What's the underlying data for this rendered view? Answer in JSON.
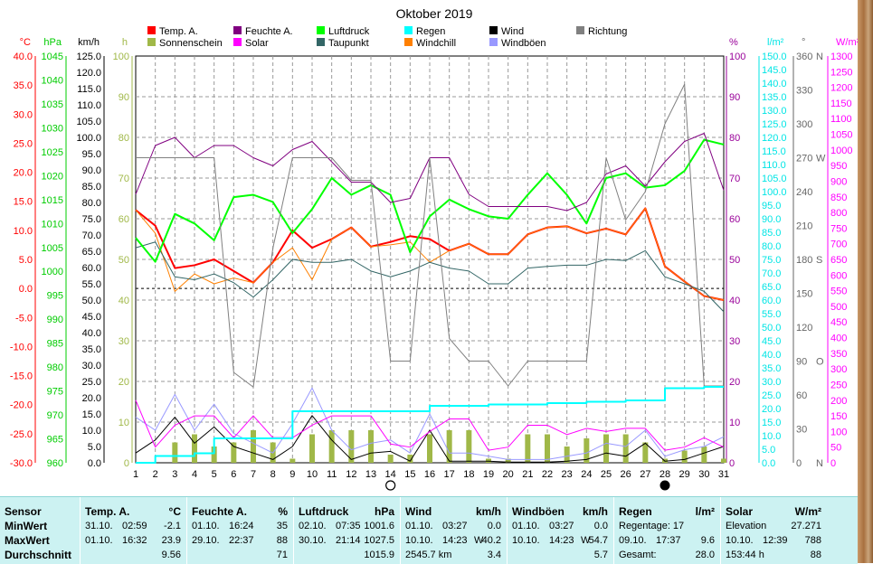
{
  "chart_data": {
    "type": "line",
    "title": "Oktober 2019",
    "days": [
      1,
      2,
      3,
      4,
      5,
      6,
      7,
      8,
      9,
      10,
      11,
      12,
      13,
      14,
      15,
      16,
      17,
      18,
      19,
      20,
      21,
      22,
      23,
      24,
      25,
      26,
      27,
      28,
      29,
      30,
      31
    ],
    "x_ticks": [
      "1",
      "2",
      "3",
      "4",
      "5",
      "6",
      "7",
      "8",
      "9",
      "10",
      "11",
      "12",
      "13",
      "14",
      "15",
      "16",
      "17",
      "18",
      "19",
      "20",
      "21",
      "22",
      "23",
      "24",
      "25",
      "26",
      "27",
      "28",
      "29",
      "30",
      "31"
    ],
    "left_axes": [
      {
        "unit": "°C",
        "color": "#ff0000",
        "min": -30,
        "max": 40,
        "step": 5,
        "ticks": [
          "40.0",
          "35.0",
          "30.0",
          "25.0",
          "20.0",
          "15.0",
          "10.0",
          "5.0",
          "0.0",
          "-5.0",
          "-10.0",
          "-15.0",
          "-20.0",
          "-25.0",
          "-30.0"
        ]
      },
      {
        "unit": "hPa",
        "color": "#00cc00",
        "min": 960,
        "max": 1045,
        "step": 5,
        "ticks": [
          "1045",
          "1040",
          "1035",
          "1030",
          "1025",
          "1020",
          "1015",
          "1010",
          "1005",
          "1000",
          "995",
          "990",
          "985",
          "980",
          "975",
          "970",
          "965",
          "960"
        ]
      },
      {
        "unit": "km/h",
        "color": "#000000",
        "min": 0,
        "max": 125,
        "step": 5,
        "ticks": [
          "125.0",
          "120.0",
          "115.0",
          "110.0",
          "105.0",
          "100.0",
          "95.0",
          "90.0",
          "85.0",
          "80.0",
          "75.0",
          "70.0",
          "65.0",
          "60.0",
          "55.0",
          "50.0",
          "45.0",
          "40.0",
          "35.0",
          "30.0",
          "25.0",
          "20.0",
          "15.0",
          "10.0",
          "5.0",
          "0.0"
        ]
      },
      {
        "unit": "h",
        "color": "#a0b848",
        "min": 0,
        "max": 100,
        "step": 10,
        "ticks": [
          "100",
          "90",
          "80",
          "70",
          "60",
          "50",
          "40",
          "30",
          "20",
          "10",
          "0"
        ]
      }
    ],
    "right_axes": [
      {
        "unit": "%",
        "color": "#990099",
        "min": 0,
        "max": 100,
        "step": 10,
        "ticks": [
          "100",
          "90",
          "80",
          "70",
          "60",
          "50",
          "40",
          "30",
          "20",
          "10",
          "0"
        ]
      },
      {
        "unit": "l/m²",
        "color": "#00e5e5",
        "min": 0,
        "max": 150,
        "step": 5,
        "ticks": [
          "150.0",
          "145.0",
          "140.0",
          "135.0",
          "130.0",
          "125.0",
          "120.0",
          "115.0",
          "110.0",
          "105.0",
          "100.0",
          "95.0",
          "90.0",
          "85.0",
          "80.0",
          "75.0",
          "70.0",
          "65.0",
          "60.0",
          "55.0",
          "50.0",
          "45.0",
          "40.0",
          "35.0",
          "30.0",
          "25.0",
          "20.0",
          "15.0",
          "10.0",
          "5.0",
          "0.0"
        ]
      },
      {
        "unit": "°",
        "color": "#666666",
        "min": 0,
        "max": 360,
        "step": 30,
        "ticks": [
          "360",
          "330",
          "300",
          "270",
          "240",
          "210",
          "180",
          "150",
          "120",
          "90",
          "60",
          "30",
          "0"
        ],
        "compass": {
          "360": "N",
          "270": "W",
          "180": "S",
          "90": "O",
          "0": "N"
        }
      },
      {
        "unit": "W/m²",
        "color": "#ff00ff",
        "min": 0,
        "max": 1300,
        "step": 50,
        "ticks": [
          "1300",
          "1250",
          "1200",
          "1150",
          "1100",
          "1050",
          "1000",
          "950",
          "900",
          "850",
          "800",
          "750",
          "700",
          "650",
          "600",
          "550",
          "500",
          "450",
          "400",
          "350",
          "300",
          "250",
          "200",
          "150",
          "100",
          "50",
          "0"
        ]
      }
    ],
    "legend": [
      {
        "name": "Temp. A.",
        "color": "#ff0000"
      },
      {
        "name": "Sonnenschein",
        "color": "#a0b848"
      },
      {
        "name": "Feuchte A.",
        "color": "#800080"
      },
      {
        "name": "Solar",
        "color": "#ff00ff"
      },
      {
        "name": "Luftdruck",
        "color": "#00ff00"
      },
      {
        "name": "Taupunkt",
        "color": "#336666"
      },
      {
        "name": "Regen",
        "color": "#00ffff"
      },
      {
        "name": "Windchill",
        "color": "#ff8000"
      },
      {
        "name": "Wind",
        "color": "#000000"
      },
      {
        "name": "Windböen",
        "color": "#9999ff"
      },
      {
        "name": "Richtung",
        "color": "#808080"
      }
    ],
    "series": [
      {
        "name": "Temp. A.",
        "axis": "°C",
        "color": "#ff0000",
        "width": 2,
        "values": [
          13.5,
          10.8,
          3.5,
          4.0,
          5.0,
          3.0,
          1.0,
          4.5,
          10.0,
          7.0,
          8.5,
          10.5,
          7.2,
          8.0,
          9.0,
          8.5,
          6.5,
          7.7,
          5.9,
          5.9,
          9.3,
          10.5,
          10.7,
          9.5,
          10.3,
          9.3,
          13.8,
          3.8,
          1.2,
          -1.3,
          -2.0
        ]
      },
      {
        "name": "Windchill",
        "axis": "°C",
        "color": "#ff8000",
        "width": 1,
        "values": [
          13.5,
          9.5,
          -0.5,
          2.5,
          0.8,
          1.8,
          1.0,
          4.5,
          7.0,
          1.5,
          8.5,
          10.5,
          7.2,
          7.5,
          8.0,
          4.5,
          6.5,
          7.7,
          5.9,
          5.9,
          9.3,
          10.5,
          10.7,
          9.5,
          10.3,
          9.3,
          13.8,
          3.8,
          1.2,
          -1.3,
          -2.0
        ]
      },
      {
        "name": "Taupunkt",
        "axis": "°C",
        "color": "#336666",
        "width": 1,
        "values": [
          7.0,
          8.0,
          2.0,
          1.5,
          2.5,
          1.0,
          -1.5,
          1.5,
          5.0,
          4.5,
          4.5,
          5.0,
          3.0,
          2.0,
          3.0,
          4.5,
          3.5,
          3.0,
          0.8,
          0.8,
          3.5,
          3.8,
          4.0,
          4.0,
          5.0,
          4.8,
          6.5,
          2.0,
          0.8,
          -0.5,
          -4.0
        ]
      },
      {
        "name": "Luftdruck",
        "axis": "hPa",
        "color": "#00ff00",
        "width": 2,
        "values": [
          1007.0,
          1002.0,
          1012.0,
          1010.0,
          1006.5,
          1015.5,
          1016.0,
          1014.5,
          1008.0,
          1013.0,
          1019.5,
          1016.0,
          1018.0,
          1016.0,
          1004.0,
          1011.5,
          1015.0,
          1013.0,
          1011.5,
          1011.0,
          1016.0,
          1020.5,
          1016.0,
          1010.0,
          1019.5,
          1020.5,
          1017.5,
          1018.0,
          1021.0,
          1027.5,
          1026.5
        ]
      },
      {
        "name": "Feuchte A.",
        "axis": "%",
        "color": "#800080",
        "width": 1,
        "values": [
          66,
          78,
          80,
          75,
          78,
          78,
          75,
          73,
          77,
          79,
          74,
          69,
          69,
          64,
          65,
          75,
          75,
          66,
          63,
          63,
          63,
          63,
          62,
          64,
          71,
          73,
          68,
          74,
          79,
          81,
          67
        ]
      },
      {
        "name": "Richtung",
        "axis": "°",
        "color": "#808080",
        "width": 1,
        "values": [
          270,
          270,
          270,
          270,
          270,
          80,
          67,
          190,
          270,
          270,
          270,
          250,
          250,
          90,
          90,
          270,
          110,
          90,
          90,
          68,
          90,
          90,
          90,
          90,
          270,
          215,
          240,
          300,
          335,
          68,
          68
        ]
      },
      {
        "name": "Wind",
        "axis": "km/h",
        "color": "#000000",
        "width": 1,
        "values": [
          3.0,
          7.0,
          14.0,
          6.0,
          11.0,
          5.0,
          3.0,
          1.0,
          5.0,
          14.5,
          7.0,
          1.0,
          3.0,
          3.5,
          0.5,
          10.0,
          0.5,
          0.5,
          0.5,
          0.2,
          0.2,
          0.2,
          0.5,
          1.0,
          3.0,
          2.0,
          6.0,
          0.5,
          1.0,
          3.0,
          5.0
        ]
      },
      {
        "name": "Windböen",
        "axis": "km/h",
        "color": "#9999ff",
        "width": 1,
        "values": [
          14.0,
          10.0,
          21.0,
          10.0,
          18.0,
          9.0,
          6.0,
          3.0,
          12.0,
          23.0,
          10.0,
          4.0,
          6.0,
          7.0,
          3.0,
          15.0,
          3.0,
          3.0,
          2.0,
          1.0,
          1.0,
          1.0,
          2.0,
          3.0,
          6.0,
          5.0,
          10.0,
          2.0,
          4.0,
          5.0,
          8.0
        ]
      },
      {
        "name": "Solar",
        "axis": "W/m²",
        "color": "#ff00ff",
        "width": 1,
        "values": [
          200,
          50,
          120,
          150,
          150,
          80,
          150,
          80,
          80,
          120,
          150,
          150,
          150,
          60,
          50,
          100,
          140,
          140,
          40,
          50,
          120,
          120,
          90,
          110,
          100,
          110,
          110,
          40,
          50,
          80,
          50
        ]
      },
      {
        "name": "Regen",
        "axis": "l/m²",
        "color": "#00ffff",
        "width": 2,
        "step": true,
        "values": [
          0.0,
          2.5,
          2.5,
          3.5,
          9.0,
          9.0,
          9.0,
          9.0,
          19.0,
          19.0,
          19.0,
          19.0,
          19.0,
          19.0,
          19.0,
          21.0,
          21.0,
          21.0,
          21.5,
          21.5,
          21.5,
          22.0,
          22.0,
          22.5,
          22.5,
          23.0,
          23.0,
          27.5,
          27.5,
          28.0,
          28.0
        ]
      },
      {
        "name": "Sonnenschein",
        "axis": "h",
        "color": "#a0b848",
        "type": "bar",
        "values": [
          0,
          0,
          5,
          7,
          4,
          5,
          8,
          5,
          1,
          7,
          8,
          8,
          8,
          2,
          2,
          7,
          8,
          8,
          1,
          1,
          7,
          7,
          4,
          6,
          7,
          7,
          5,
          1,
          3,
          4,
          1
        ]
      }
    ],
    "reference_lines": [
      {
        "axis": "°C",
        "value": 0.0,
        "style": "dashed",
        "color": "#000000"
      }
    ],
    "markers": [
      {
        "day": 14,
        "symbol": "○",
        "meaning": "full-moon"
      },
      {
        "day": 28,
        "symbol": "●",
        "meaning": "new-moon"
      }
    ],
    "grid": true
  },
  "stats": {
    "sensor": {
      "header": "Sensor",
      "rows": [
        "MinWert",
        "MaxWert",
        "Durchschnitt"
      ]
    },
    "temp": {
      "header": "Temp. A.",
      "unit": "°C",
      "min_date": "31.10.",
      "min_time": "02:59",
      "min_val": "-2.1",
      "max_date": "01.10.",
      "max_time": "16:32",
      "max_val": "23.9",
      "avg": "9.56"
    },
    "humidity": {
      "header": "Feuchte A.",
      "unit": "%",
      "min_date": "01.10.",
      "min_time": "16:24",
      "min_val": "35",
      "max_date": "29.10.",
      "max_time": "22:37",
      "max_val": "88",
      "avg": "71"
    },
    "pressure": {
      "header": "Luftdruck",
      "unit": "hPa",
      "min_date": "02.10.",
      "min_time": "07:35",
      "min_val": "1001.6",
      "max_date": "30.10.",
      "max_time": "21:14",
      "max_val": "1027.5",
      "avg": "1015.9"
    },
    "wind": {
      "header": "Wind",
      "unit": "km/h",
      "min_date": "01.10.",
      "min_time": "03:27",
      "min_val": "0.0",
      "max_date": "10.10.",
      "max_time": "14:23",
      "max_dir": "W",
      "max_val": "40.2",
      "total": "2545.7 km",
      "avg": "3.4"
    },
    "gust": {
      "header": "Windböen",
      "unit": "km/h",
      "min_date": "01.10.",
      "min_time": "03:27",
      "min_val": "0.0",
      "max_date": "10.10.",
      "max_time": "14:23",
      "max_dir": "W",
      "max_val": "54.7",
      "avg": "5.7"
    },
    "rain": {
      "header": "Regen",
      "unit": "l/m²",
      "days_label": "Regentage: 17",
      "max_date": "09.10.",
      "max_time": "17:37",
      "max_val": "9.6",
      "total_label": "Gesamt:",
      "total": "28.0"
    },
    "solar": {
      "header": "Solar",
      "unit": "W/m²",
      "elev_label": "Elevation",
      "elev_val": "27.271",
      "max_date": "10.10.",
      "max_time": "12:39",
      "max_val": "788",
      "hours": "153:44 h",
      "avg": "88"
    }
  }
}
